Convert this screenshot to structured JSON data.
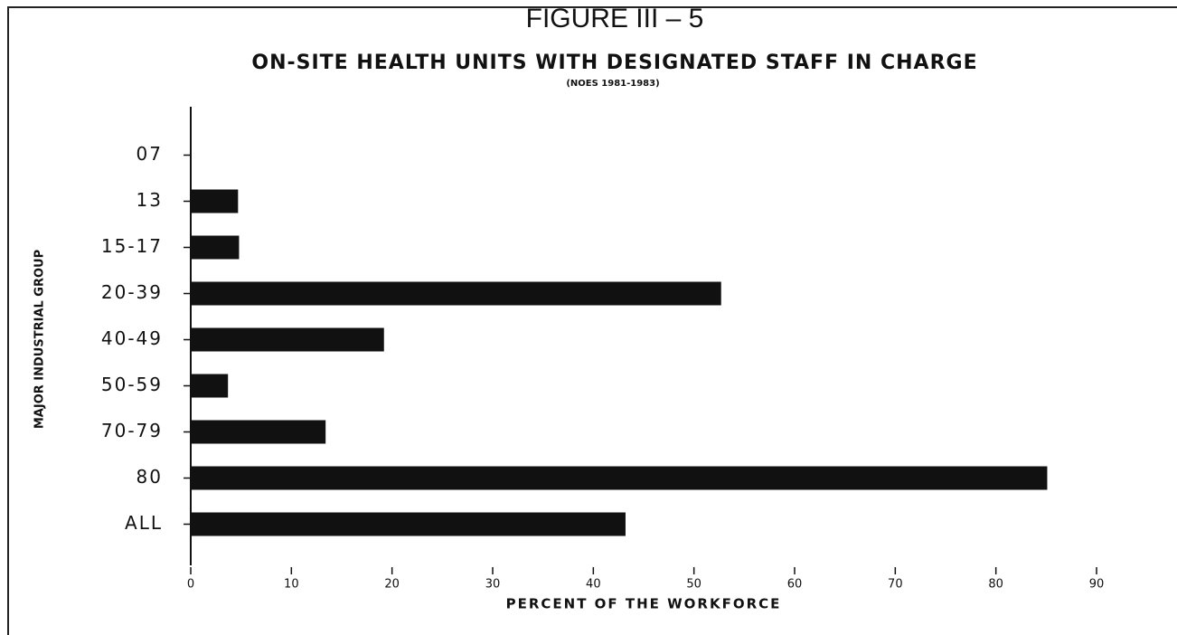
{
  "chart_data": {
    "type": "bar",
    "orientation": "horizontal",
    "title": "FIGURE III – 5",
    "subtitle": "ON-SITE HEALTH UNITS WITH DESIGNATED STAFF IN CHARGE",
    "note": "(NOES 1981-1983)",
    "y_label": "MAJOR INDUSTRIAL GROUP",
    "x_label": "PERCENT OF THE WORKFORCE",
    "categories": [
      "07",
      "13",
      "15-17",
      "20-39",
      "40-49",
      "50-59",
      "70-79",
      "80",
      "ALL"
    ],
    "values": [
      0,
      4.7,
      4.8,
      52.7,
      19.2,
      3.7,
      13.4,
      85.1,
      43.2
    ],
    "color": "#111111",
    "xlim": [
      0,
      90
    ],
    "xticks": [
      0,
      10,
      20,
      30,
      40,
      50,
      60,
      70,
      80,
      90
    ]
  }
}
